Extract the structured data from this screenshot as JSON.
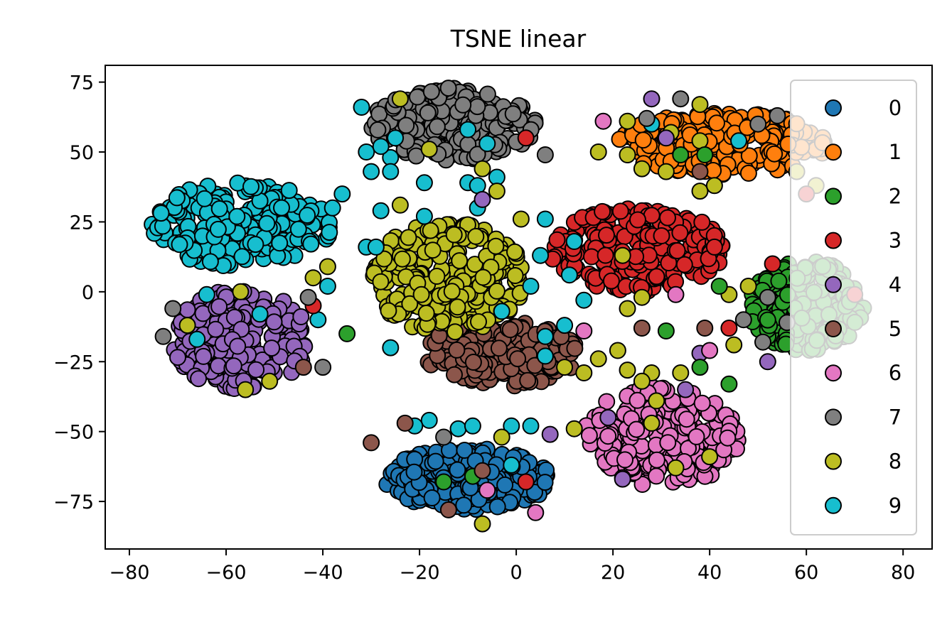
{
  "chart_data": {
    "type": "scatter",
    "title": "TSNE linear",
    "xlabel": "",
    "ylabel": "",
    "xlim": [
      -85,
      86
    ],
    "ylim": [
      -92,
      81
    ],
    "x_ticks": [
      -80,
      -60,
      -40,
      -20,
      0,
      20,
      40,
      60,
      80
    ],
    "x_tick_labels": [
      "−80",
      "−60",
      "−40",
      "−20",
      "0",
      "20",
      "40",
      "60",
      "80"
    ],
    "y_ticks": [
      -75,
      -50,
      -25,
      0,
      25,
      50,
      75
    ],
    "y_tick_labels": [
      "−75",
      "−50",
      "−25",
      "0",
      "25",
      "50",
      "75"
    ],
    "grid": false,
    "legend_position": "right",
    "marker_edge_color": "#000000",
    "series": [
      {
        "name": "0",
        "color": "#1f77b4",
        "clusters": [
          {
            "cx": -10,
            "cy": -67,
            "rx": 17,
            "ry": 11,
            "n": 240
          }
        ]
      },
      {
        "name": "1",
        "color": "#ff7f0e",
        "clusters": [
          {
            "cx": 43,
            "cy": 53,
            "rx": 22,
            "ry": 11,
            "n": 230
          }
        ]
      },
      {
        "name": "2",
        "color": "#2ca02c",
        "clusters": [
          {
            "cx": 60,
            "cy": -5,
            "rx": 12,
            "ry": 16,
            "n": 200
          }
        ]
      },
      {
        "name": "3",
        "color": "#d62728",
        "clusters": [
          {
            "cx": 25,
            "cy": 15,
            "rx": 18,
            "ry": 15,
            "n": 220
          }
        ]
      },
      {
        "name": "4",
        "color": "#9467bd",
        "clusters": [
          {
            "cx": -57,
            "cy": -17,
            "rx": 14,
            "ry": 18,
            "n": 200
          }
        ]
      },
      {
        "name": "5",
        "color": "#8c564b",
        "clusters": [
          {
            "cx": -3,
            "cy": -22,
            "rx": 16,
            "ry": 12,
            "n": 210
          }
        ]
      },
      {
        "name": "6",
        "color": "#e377c2",
        "clusters": [
          {
            "cx": 30,
            "cy": -52,
            "rx": 16,
            "ry": 18,
            "n": 220
          }
        ]
      },
      {
        "name": "7",
        "color": "#7f7f7f",
        "clusters": [
          {
            "cx": -13,
            "cy": 60,
            "rx": 17,
            "ry": 13,
            "n": 210
          }
        ]
      },
      {
        "name": "8",
        "color": "#bcbd22",
        "clusters": [
          {
            "cx": -14,
            "cy": 5,
            "rx": 16,
            "ry": 20,
            "n": 230
          }
        ]
      },
      {
        "name": "9",
        "color": "#17becf",
        "clusters": [
          {
            "cx": -57,
            "cy": 24,
            "rx": 19,
            "ry": 15,
            "n": 220
          }
        ]
      }
    ],
    "points": [
      {
        "x": -32,
        "y": 66,
        "s": 9
      },
      {
        "x": -31,
        "y": 50,
        "s": 9
      },
      {
        "x": -26,
        "y": 48,
        "s": 9
      },
      {
        "x": -28,
        "y": 52,
        "s": 9
      },
      {
        "x": -25,
        "y": 55,
        "s": 9
      },
      {
        "x": -30,
        "y": 43,
        "s": 9
      },
      {
        "x": -26,
        "y": 43,
        "s": 9
      },
      {
        "x": -19,
        "y": 39,
        "s": 9
      },
      {
        "x": -10,
        "y": 58,
        "s": 9
      },
      {
        "x": -6,
        "y": 53,
        "s": 9
      },
      {
        "x": -10,
        "y": 39,
        "s": 9
      },
      {
        "x": -8,
        "y": 38,
        "s": 9
      },
      {
        "x": -4,
        "y": 41,
        "s": 9
      },
      {
        "x": -8,
        "y": 30,
        "s": 9
      },
      {
        "x": -19,
        "y": 27,
        "s": 9
      },
      {
        "x": -28,
        "y": 29,
        "s": 9
      },
      {
        "x": -31,
        "y": 16,
        "s": 9
      },
      {
        "x": -29,
        "y": 16,
        "s": 9
      },
      {
        "x": 6,
        "y": 26,
        "s": 9
      },
      {
        "x": 5,
        "y": 13,
        "s": 9
      },
      {
        "x": 12,
        "y": 18,
        "s": 9
      },
      {
        "x": 11,
        "y": 6,
        "s": 9
      },
      {
        "x": 3,
        "y": 2,
        "s": 9
      },
      {
        "x": -3,
        "y": -7,
        "s": 9
      },
      {
        "x": 14,
        "y": -3,
        "s": 9
      },
      {
        "x": 10,
        "y": -12,
        "s": 9
      },
      {
        "x": 6,
        "y": -16,
        "s": 9
      },
      {
        "x": 6,
        "y": -23,
        "s": 9
      },
      {
        "x": -26,
        "y": -20,
        "s": 9
      },
      {
        "x": -39,
        "y": 2,
        "s": 9
      },
      {
        "x": -41,
        "y": -10,
        "s": 9
      },
      {
        "x": -53,
        "y": -8,
        "s": 9
      },
      {
        "x": -64,
        "y": -1,
        "s": 9
      },
      {
        "x": -66,
        "y": -17,
        "s": 9
      },
      {
        "x": 28,
        "y": 60,
        "s": 9
      },
      {
        "x": 46,
        "y": 54,
        "s": 9
      },
      {
        "x": -18,
        "y": -46,
        "s": 9
      },
      {
        "x": -21,
        "y": -48,
        "s": 9
      },
      {
        "x": -12,
        "y": -49,
        "s": 9
      },
      {
        "x": -9,
        "y": -48,
        "s": 9
      },
      {
        "x": -1,
        "y": -48,
        "s": 9
      },
      {
        "x": 3,
        "y": -48,
        "s": 9
      },
      {
        "x": -1,
        "y": -62,
        "s": 9
      },
      {
        "x": -36,
        "y": 35,
        "s": 9
      },
      {
        "x": -38,
        "y": 30,
        "s": 9
      },
      {
        "x": -24,
        "y": 69,
        "s": 8
      },
      {
        "x": -18,
        "y": 51,
        "s": 8
      },
      {
        "x": -7,
        "y": 44,
        "s": 8
      },
      {
        "x": -4,
        "y": 36,
        "s": 8
      },
      {
        "x": -24,
        "y": 31,
        "s": 8
      },
      {
        "x": 23,
        "y": 61,
        "s": 8
      },
      {
        "x": 32,
        "y": 57,
        "s": 8
      },
      {
        "x": 38,
        "y": 54,
        "s": 8
      },
      {
        "x": 38,
        "y": 36,
        "s": 8
      },
      {
        "x": 23,
        "y": 49,
        "s": 8
      },
      {
        "x": 17,
        "y": 50,
        "s": 8
      },
      {
        "x": 26,
        "y": 44,
        "s": 8
      },
      {
        "x": 31,
        "y": 43,
        "s": 8
      },
      {
        "x": 41,
        "y": 38,
        "s": 8
      },
      {
        "x": 38,
        "y": 67,
        "s": 8
      },
      {
        "x": 22,
        "y": 13,
        "s": 8
      },
      {
        "x": 26,
        "y": -2,
        "s": 8
      },
      {
        "x": 23,
        "y": -6,
        "s": 8
      },
      {
        "x": 45,
        "y": -19,
        "s": 8
      },
      {
        "x": 48,
        "y": 2,
        "s": 8
      },
      {
        "x": 44,
        "y": -1,
        "s": 8
      },
      {
        "x": 28,
        "y": -29,
        "s": 8
      },
      {
        "x": 29,
        "y": -39,
        "s": 8
      },
      {
        "x": 26,
        "y": -32,
        "s": 8
      },
      {
        "x": 23,
        "y": -28,
        "s": 8
      },
      {
        "x": 34,
        "y": -29,
        "s": 8
      },
      {
        "x": 28,
        "y": -47,
        "s": 8
      },
      {
        "x": 40,
        "y": -59,
        "s": 8
      },
      {
        "x": 33,
        "y": -63,
        "s": 8
      },
      {
        "x": 12,
        "y": -49,
        "s": 8
      },
      {
        "x": 14,
        "y": -29,
        "s": 8
      },
      {
        "x": 17,
        "y": -24,
        "s": 8
      },
      {
        "x": 10,
        "y": -27,
        "s": 8
      },
      {
        "x": -7,
        "y": -83,
        "s": 8
      },
      {
        "x": -3,
        "y": -52,
        "s": 8
      },
      {
        "x": -51,
        "y": -32,
        "s": 8
      },
      {
        "x": -56,
        "y": -35,
        "s": 8
      },
      {
        "x": -68,
        "y": -12,
        "s": 8
      },
      {
        "x": -57,
        "y": 0,
        "s": 8
      },
      {
        "x": -39,
        "y": 9,
        "s": 8
      },
      {
        "x": -42,
        "y": 5,
        "s": 8
      },
      {
        "x": 21,
        "y": -21,
        "s": 8
      },
      {
        "x": 1,
        "y": 26,
        "s": 8
      },
      {
        "x": 58,
        "y": 43,
        "s": 8
      },
      {
        "x": 62,
        "y": 38,
        "s": 8
      },
      {
        "x": 28,
        "y": 69,
        "s": 4
      },
      {
        "x": 31,
        "y": 55,
        "s": 4
      },
      {
        "x": 19,
        "y": -45,
        "s": 4
      },
      {
        "x": 35,
        "y": -35,
        "s": 4
      },
      {
        "x": 22,
        "y": -67,
        "s": 4
      },
      {
        "x": 7,
        "y": -51,
        "s": 4
      },
      {
        "x": 38,
        "y": -22,
        "s": 4
      },
      {
        "x": 52,
        "y": -25,
        "s": 4
      },
      {
        "x": -7,
        "y": 33,
        "s": 4
      },
      {
        "x": 33,
        "y": -1,
        "s": 6
      },
      {
        "x": 40,
        "y": -21,
        "s": 6
      },
      {
        "x": -6,
        "y": -71,
        "s": 6
      },
      {
        "x": 4,
        "y": -79,
        "s": 6
      },
      {
        "x": 18,
        "y": 61,
        "s": 6
      },
      {
        "x": 14,
        "y": -14,
        "s": 6
      },
      {
        "x": 2,
        "y": -68,
        "s": 3
      },
      {
        "x": 44,
        "y": -13,
        "s": 3
      },
      {
        "x": 53,
        "y": 10,
        "s": 3
      },
      {
        "x": 2,
        "y": 55,
        "s": 3
      },
      {
        "x": 41,
        "y": 16,
        "s": 3
      },
      {
        "x": -42,
        "y": -5,
        "s": 3
      },
      {
        "x": 60,
        "y": 35,
        "s": 3
      },
      {
        "x": 70,
        "y": -1,
        "s": 3
      },
      {
        "x": -35,
        "y": -15,
        "s": 2
      },
      {
        "x": 44,
        "y": -33,
        "s": 2
      },
      {
        "x": 38,
        "y": -27,
        "s": 2
      },
      {
        "x": 31,
        "y": -14,
        "s": 2
      },
      {
        "x": -15,
        "y": -68,
        "s": 2
      },
      {
        "x": -9,
        "y": -66,
        "s": 2
      },
      {
        "x": 39,
        "y": 49,
        "s": 2
      },
      {
        "x": 34,
        "y": 49,
        "s": 2
      },
      {
        "x": 42,
        "y": 2,
        "s": 2
      },
      {
        "x": -14,
        "y": -78,
        "s": 5
      },
      {
        "x": -30,
        "y": -54,
        "s": 5
      },
      {
        "x": -23,
        "y": -47,
        "s": 5
      },
      {
        "x": -7,
        "y": -64,
        "s": 5
      },
      {
        "x": -44,
        "y": -27,
        "s": 5
      },
      {
        "x": 38,
        "y": 43,
        "s": 5
      },
      {
        "x": 39,
        "y": -13,
        "s": 5
      },
      {
        "x": 26,
        "y": -13,
        "s": 5
      },
      {
        "x": -73,
        "y": -16,
        "s": 7
      },
      {
        "x": -71,
        "y": -6,
        "s": 7
      },
      {
        "x": -40,
        "y": -27,
        "s": 7
      },
      {
        "x": -43,
        "y": -2,
        "s": 7
      },
      {
        "x": 34,
        "y": 69,
        "s": 7
      },
      {
        "x": 27,
        "y": 62,
        "s": 7
      },
      {
        "x": 50,
        "y": 60,
        "s": 7
      },
      {
        "x": 54,
        "y": 63,
        "s": 7
      },
      {
        "x": 52,
        "y": -2,
        "s": 7
      },
      {
        "x": 51,
        "y": -18,
        "s": 7
      },
      {
        "x": 47,
        "y": -10,
        "s": 7
      },
      {
        "x": 56,
        "y": -11,
        "s": 7
      },
      {
        "x": 6,
        "y": 49,
        "s": 7
      },
      {
        "x": -15,
        "y": -52,
        "s": 7
      }
    ]
  }
}
